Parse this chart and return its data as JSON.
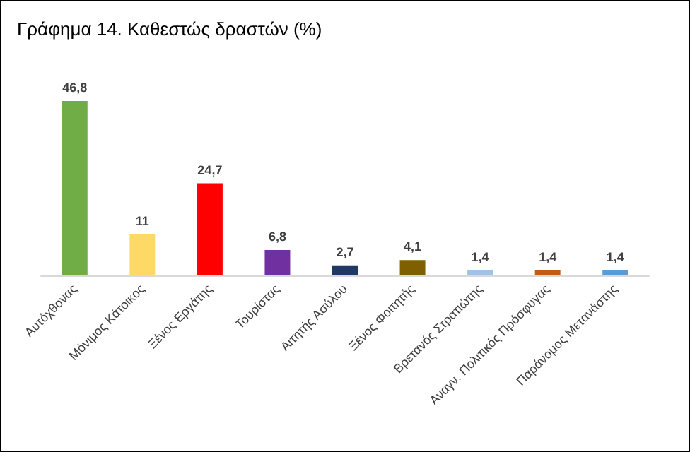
{
  "chart_data": {
    "type": "bar",
    "title": "Γράφημα 14. Καθεστώς δραστών (%)",
    "categories": [
      "Αυτόχθονας",
      "Μόνιμος Κάτοικος",
      "Ξένος Εργάτης",
      "Τουρίστας",
      "Αιτητής Ασύλου",
      "Ξένος Φοιτητής",
      "Βρετανός Στρατιώτης",
      "Αναγν. Πολιτικός Πρόσφυγας",
      "Παράνομος Μετανάστης"
    ],
    "values": [
      46.8,
      11,
      24.7,
      6.8,
      2.7,
      4.1,
      1.4,
      1.4,
      1.4
    ],
    "value_labels": [
      "46,8",
      "11",
      "24,7",
      "6,8",
      "2,7",
      "4,1",
      "1,4",
      "1,4",
      "1,4"
    ],
    "colors": [
      "#70ad47",
      "#ffd966",
      "#ff0000",
      "#7030a0",
      "#1f3864",
      "#7f6000",
      "#9dc3e6",
      "#c55a11",
      "#5b9bd5"
    ],
    "relative": false
  }
}
